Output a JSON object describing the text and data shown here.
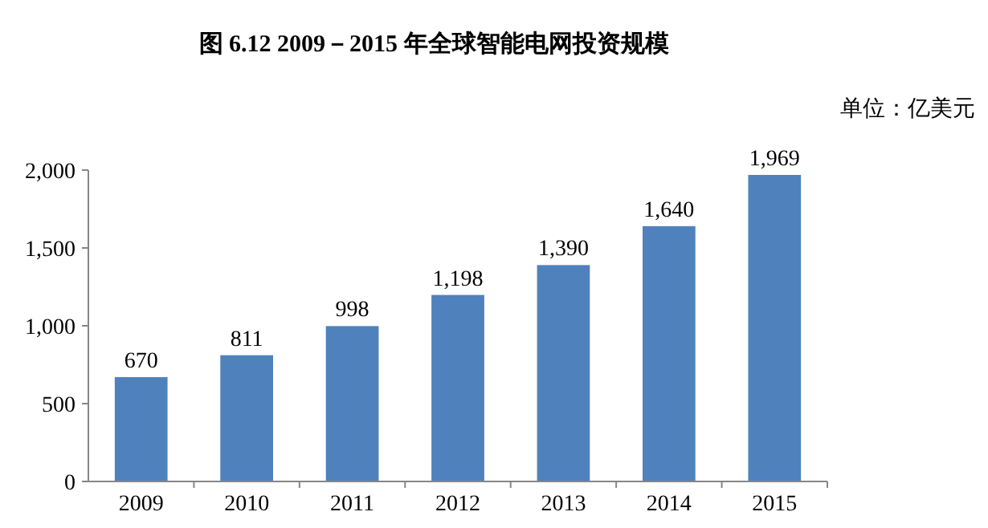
{
  "chart_data": {
    "type": "bar",
    "title": "图 6.12 2009－2015 年全球智能电网投资规模",
    "annotations": [
      "单位：亿美元"
    ],
    "categories": [
      "2009",
      "2010",
      "2011",
      "2012",
      "2013",
      "2014",
      "2015"
    ],
    "values": [
      670,
      811,
      998,
      1198,
      1390,
      1640,
      1969
    ],
    "value_labels": [
      "670",
      "811",
      "998",
      "1,198",
      "1,390",
      "1,640",
      "1,969"
    ],
    "color": "#4f81bd",
    "ylim": [
      0,
      2000
    ],
    "yticks": [
      0,
      500,
      {
        "value": 1000,
        "label": "1,000"
      },
      {
        "value": 1500,
        "label": "1,500"
      },
      {
        "value": 2000,
        "label": "2,000"
      }
    ],
    "grid": false
  }
}
